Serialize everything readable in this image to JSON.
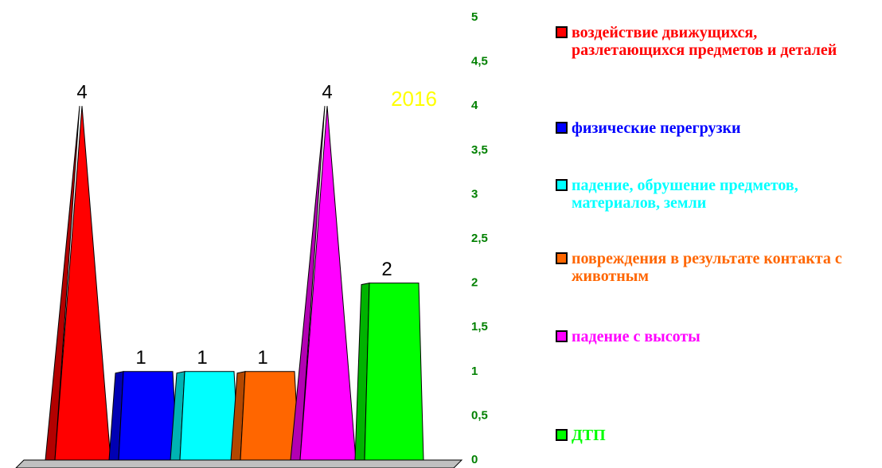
{
  "chart_data": {
    "type": "bar",
    "title": "2016",
    "series": [
      {
        "name": "воздействие движущихся, разлетающихся предметов и деталей",
        "color": "#ff0000",
        "shape": "pyramid",
        "values": [
          4
        ]
      },
      {
        "name": "физические перегрузки",
        "color": "#0000ff",
        "shape": "trapezoid",
        "values": [
          1
        ]
      },
      {
        "name": "падение, обрушение предметов, материалов, земли",
        "color": "#00ffff",
        "shape": "trapezoid",
        "values": [
          1
        ]
      },
      {
        "name": "повреждения в результате контакта с животным",
        "color": "#ff6600",
        "shape": "trapezoid",
        "values": [
          1
        ]
      },
      {
        "name": "падение с высоты",
        "color": "#ff00ff",
        "shape": "pyramid",
        "values": [
          4
        ]
      },
      {
        "name": "ДТП",
        "color": "#00ff00",
        "shape": "trapezoid",
        "values": [
          2
        ]
      }
    ],
    "ylim": [
      0,
      5
    ],
    "yticks": [
      0,
      {
        "value": 0.5,
        "label": "0,5"
      },
      1,
      {
        "value": 1.5,
        "label": "1,5"
      },
      2,
      {
        "value": 2.5,
        "label": "2,5"
      },
      3,
      {
        "value": 3.5,
        "label": "3,5"
      },
      4,
      {
        "value": 4.5,
        "label": "4,5"
      },
      5
    ],
    "legend": "right"
  }
}
